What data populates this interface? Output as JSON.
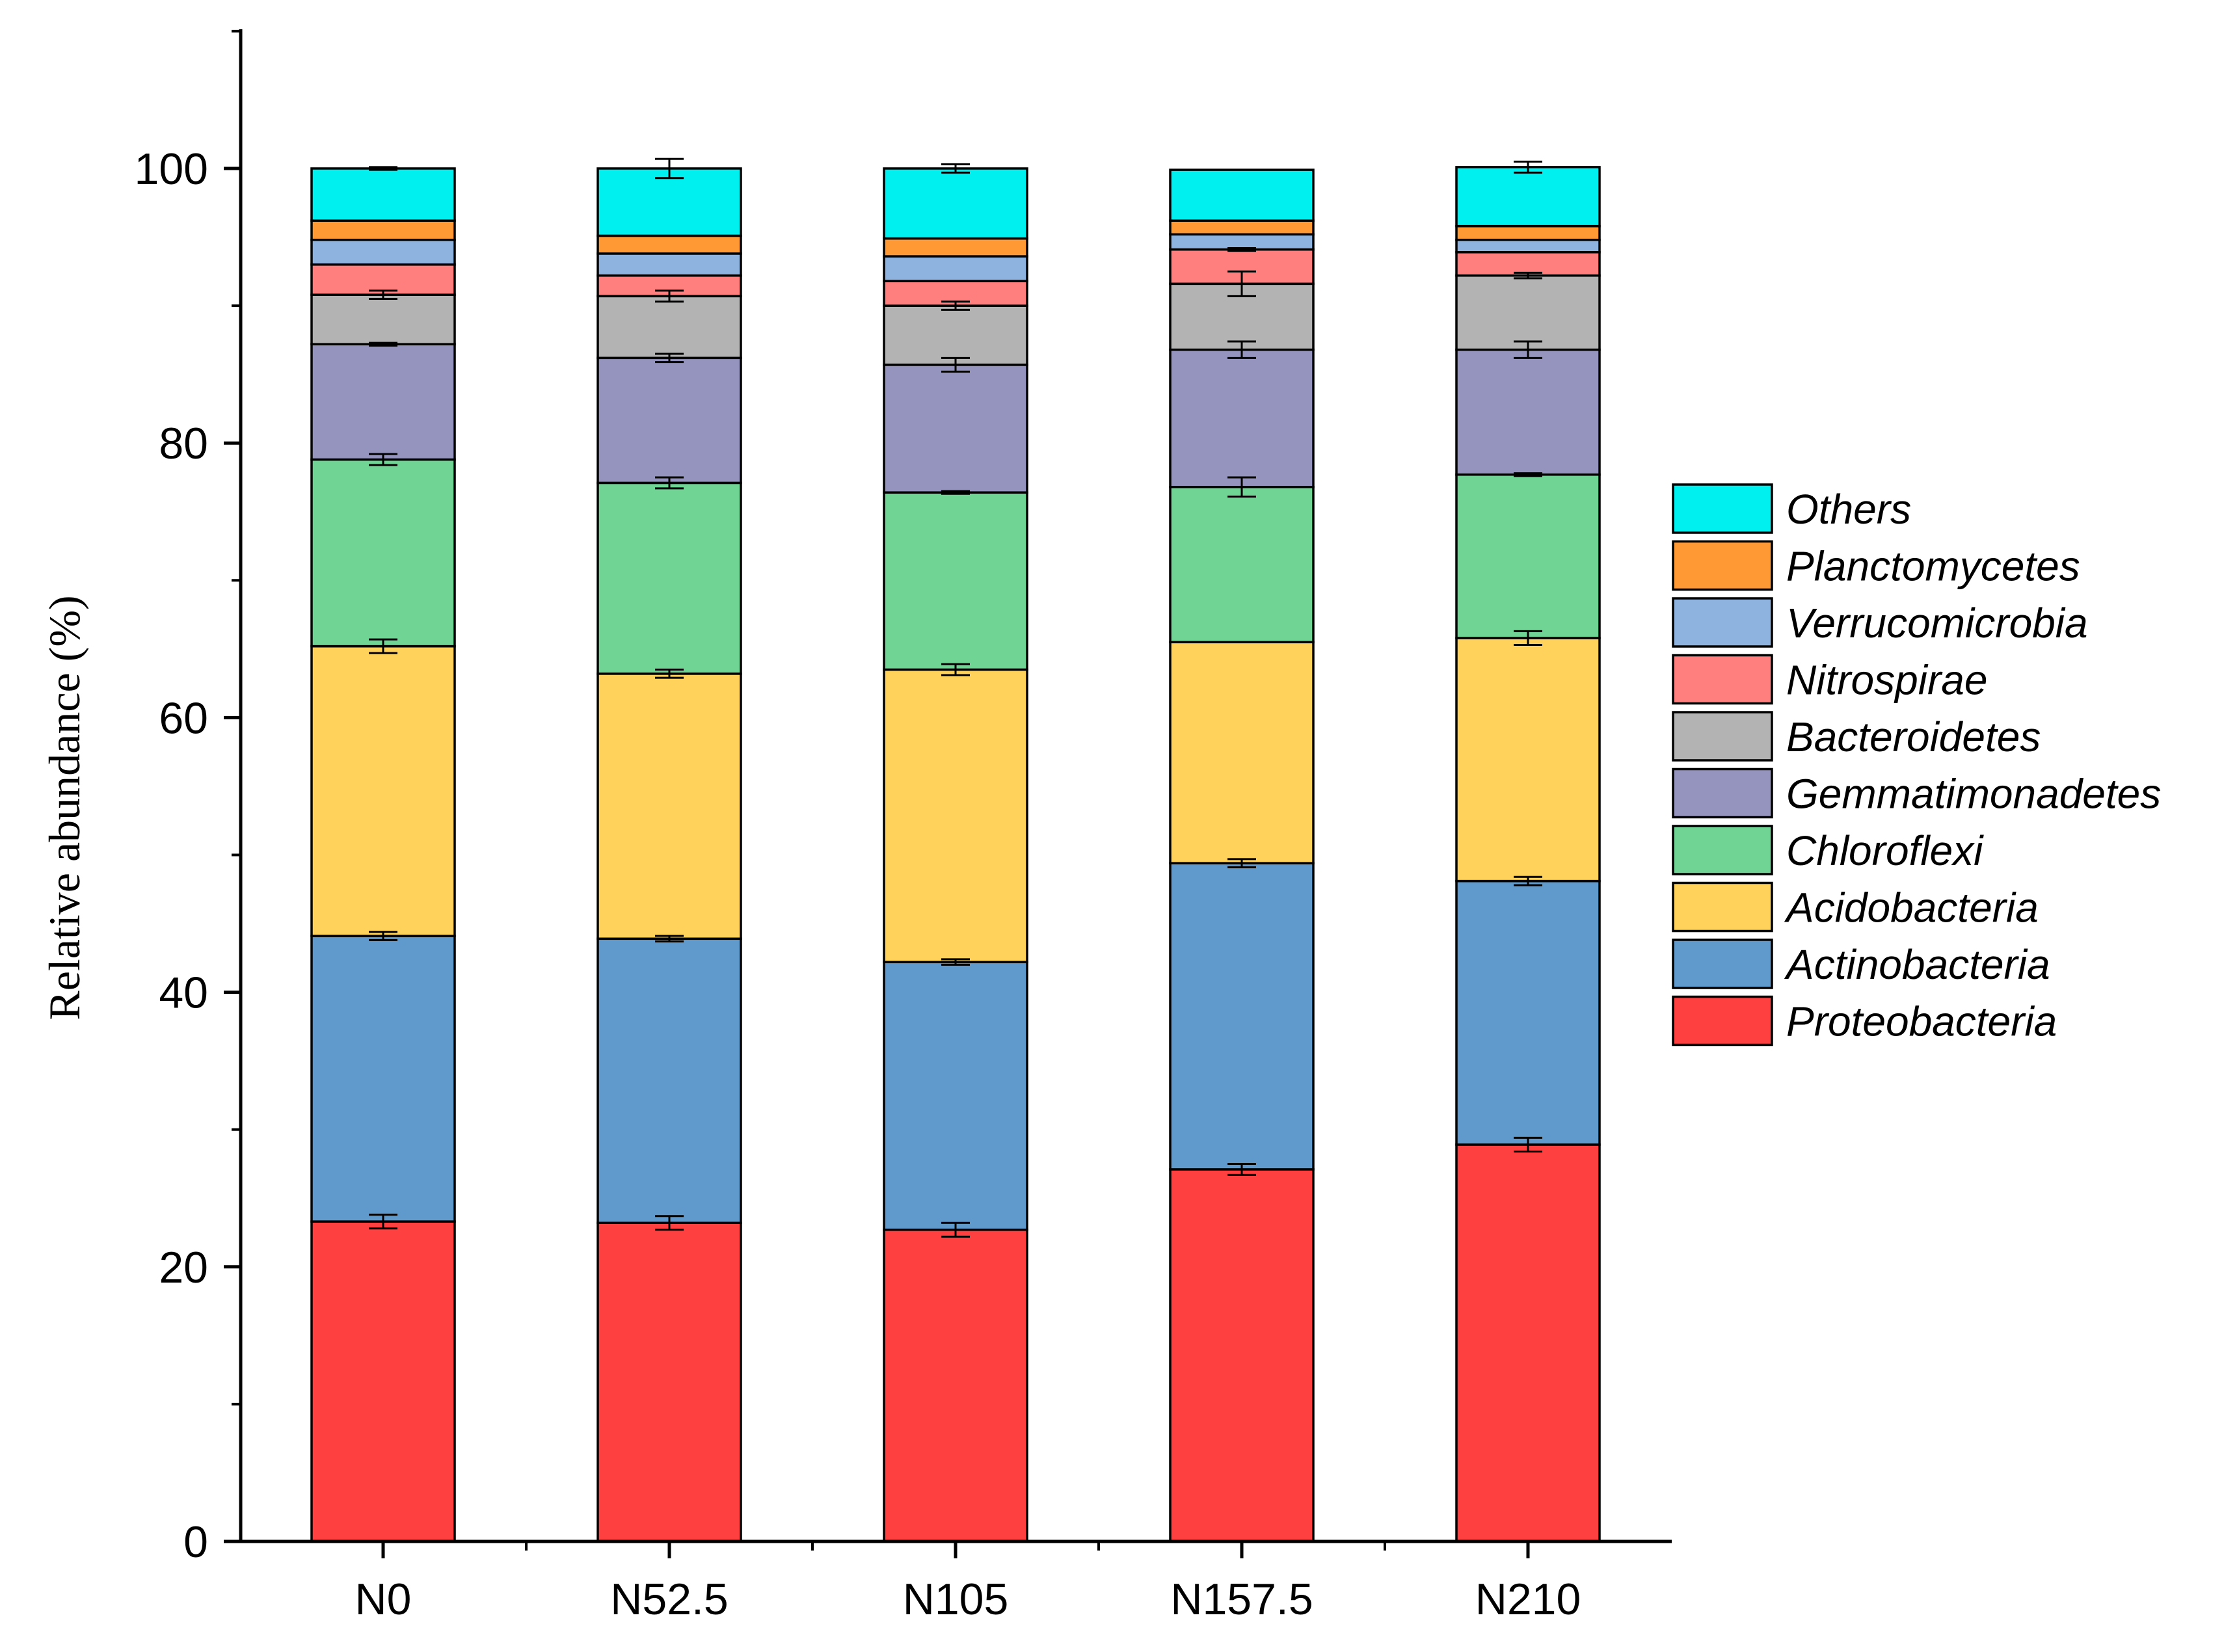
{
  "chart_data": {
    "type": "bar",
    "stacked": true,
    "title": "",
    "xlabel": "",
    "ylabel": "Relative abundance (%)",
    "ylim": [
      0,
      110
    ],
    "yticks": [
      0,
      20,
      40,
      60,
      80,
      100
    ],
    "grid": false,
    "legend_position": "right",
    "categories": [
      "N0",
      "N52.5",
      "N105",
      "N157.5",
      "N210"
    ],
    "series": [
      {
        "name": "Proteobacteria",
        "color": "#FF4040",
        "values": [
          23.3,
          23.2,
          22.7,
          27.1,
          28.9
        ],
        "errors": [
          0.5,
          0.5,
          0.5,
          0.4,
          0.5
        ]
      },
      {
        "name": "Actinobacteria",
        "color": "#6099CC",
        "values": [
          20.8,
          20.7,
          19.5,
          22.3,
          19.2
        ],
        "errors": [
          0.3,
          0.2,
          0.2,
          0.3,
          0.3
        ]
      },
      {
        "name": "Acidobacteria",
        "color": "#FFD25C",
        "values": [
          21.1,
          19.3,
          21.3,
          16.1,
          17.7
        ],
        "errors": [
          0.5,
          0.3,
          0.4,
          0.0,
          0.5
        ]
      },
      {
        "name": "Chloroflexi",
        "color": "#70D495",
        "values": [
          13.6,
          13.9,
          12.9,
          11.3,
          11.9
        ],
        "errors": [
          0.4,
          0.4,
          0.1,
          0.7,
          0.1
        ]
      },
      {
        "name": "Gemmatimonadetes",
        "color": "#9594BE",
        "values": [
          8.4,
          9.1,
          9.3,
          10.0,
          9.1
        ],
        "errors": [
          0.1,
          0.3,
          0.5,
          0.6,
          0.6
        ]
      },
      {
        "name": "Bacteroidetes",
        "color": "#B3B3B3",
        "values": [
          3.6,
          4.5,
          4.3,
          4.8,
          5.4
        ],
        "errors": [
          0.3,
          0.4,
          0.3,
          0.9,
          0.2
        ]
      },
      {
        "name": "Nitrospirae",
        "color": "#FF7F7F",
        "values": [
          2.2,
          1.5,
          1.8,
          2.5,
          1.7
        ],
        "errors": [
          0.0,
          0.0,
          0.0,
          0.1,
          0.0
        ]
      },
      {
        "name": "Verrucomicrobia",
        "color": "#8DB3DE",
        "values": [
          1.8,
          1.6,
          1.8,
          1.1,
          0.9
        ],
        "errors": [
          0.0,
          0.0,
          0.0,
          0.0,
          0.0
        ]
      },
      {
        "name": "Planctomycetes",
        "color": "#FF9933",
        "values": [
          1.4,
          1.3,
          1.3,
          1.0,
          1.0
        ],
        "errors": [
          0.0,
          0.0,
          0.0,
          0.0,
          0.0
        ]
      },
      {
        "name": "Others",
        "color": "#00F0F0",
        "values": [
          3.8,
          4.9,
          5.1,
          3.7,
          4.3
        ],
        "errors": [
          0.1,
          0.7,
          0.3,
          0.0,
          0.4
        ]
      }
    ]
  }
}
